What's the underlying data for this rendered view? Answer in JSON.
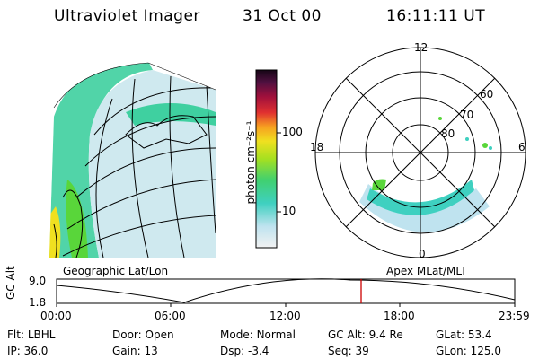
{
  "header": {
    "instrument": "Ultraviolet Imager",
    "date": "31 Oct 00",
    "time": "16:11:11 UT"
  },
  "colorbar": {
    "unit_label": "photon cm⁻²s⁻¹",
    "ticks": [
      "100",
      "10"
    ]
  },
  "polar": {
    "mlt_labels": [
      "12",
      "18",
      "6",
      "0"
    ],
    "lat_labels": [
      "60",
      "70",
      "80"
    ]
  },
  "panel_labels": {
    "left": "Geographic Lat/Lon",
    "right": "Apex MLat/MLT"
  },
  "altitude_plot": {
    "ylabel": "GC Alt",
    "y_ticks": [
      "9.0",
      "1.8"
    ],
    "x_ticks": [
      "00:00",
      "06:00",
      "12:00",
      "18:00",
      "23:59"
    ],
    "marker_color": "#cc0000"
  },
  "status": {
    "row1": [
      {
        "label": "Flt:",
        "value": "LBHL"
      },
      {
        "label": "Door:",
        "value": "Open"
      },
      {
        "label": "Mode:",
        "value": "Normal"
      },
      {
        "label": "GC Alt:",
        "value": "9.4 Re"
      },
      {
        "label": "GLat:",
        "value": "53.4"
      }
    ],
    "row2": [
      {
        "label": "IP:",
        "value": "36.0"
      },
      {
        "label": "Gain:",
        "value": "13"
      },
      {
        "label": "Dsp:",
        "value": "-3.4"
      },
      {
        "label": "Seq:",
        "value": "39"
      },
      {
        "label": "GLon:",
        "value": "125.0"
      }
    ]
  }
}
